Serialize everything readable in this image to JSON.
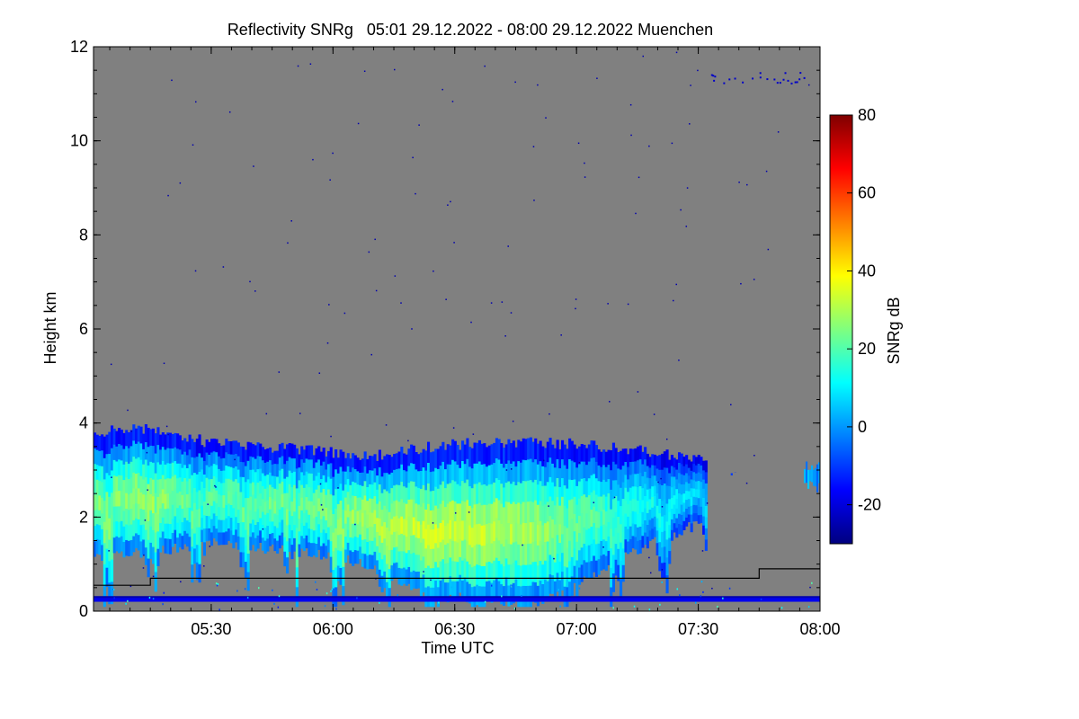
{
  "chart_data": {
    "type": "heatmap",
    "title": "Reflectivity SNRg   05:01 29.12.2022 - 08:00 29.12.2022 Muenchen",
    "xlabel": "Time UTC",
    "ylabel": "Height km",
    "x_unit": "time UTC",
    "xlim": [
      "05:01",
      "08:00"
    ],
    "ylim": [
      0,
      12
    ],
    "x_ticks": [
      "05:30",
      "06:00",
      "06:30",
      "07:00",
      "07:30",
      "08:00"
    ],
    "y_ticks": [
      "0",
      "2",
      "4",
      "6",
      "8",
      "10",
      "12"
    ],
    "background_color": "#808080",
    "colorbar": {
      "label": "SNRg dB",
      "range": [
        -30,
        80
      ],
      "ticks": [
        "-20",
        "0",
        "20",
        "40",
        "60",
        "80"
      ],
      "colormap": [
        "#00007f",
        "#0000ff",
        "#007fff",
        "#00ffff",
        "#7fff7f",
        "#ffff00",
        "#ff7f00",
        "#ff0000",
        "#7f0000"
      ]
    },
    "cloud_layer": {
      "description_values": "precipitating cloud with fall streaks",
      "time_start": "05:01",
      "time_end": "07:32",
      "top_km": [
        3.8,
        3.9,
        3.6,
        3.5,
        3.4,
        3.3,
        3.5,
        3.6,
        3.6,
        3.5,
        3.4,
        3.2
      ],
      "base_km": [
        1.1,
        1.2,
        1.4,
        1.3,
        1.2,
        0.9,
        0.3,
        0.2,
        0.1,
        0.8,
        1.4,
        1.9
      ],
      "core_snr_db": [
        25,
        28,
        20,
        22,
        24,
        30,
        33,
        32,
        28,
        20,
        12,
        5
      ],
      "extra_cells": [
        {
          "time_start": "07:38",
          "time_end": "07:42",
          "height_km": [
            2.8,
            3.0
          ],
          "snr_db": -10
        },
        {
          "time_start": "07:56",
          "time_end": "08:00",
          "height_km": [
            2.5,
            3.2
          ],
          "snr_db": 0
        }
      ]
    },
    "overlay_line": {
      "name": "black step line",
      "points": [
        [
          "05:01",
          0.55
        ],
        [
          "05:15",
          0.55
        ],
        [
          "05:15",
          0.7
        ],
        [
          "07:45",
          0.7
        ],
        [
          "07:45",
          0.9
        ],
        [
          "08:00",
          0.9
        ]
      ],
      "color": "#000000"
    },
    "surface_band_km": [
      0.2,
      0.3
    ]
  }
}
